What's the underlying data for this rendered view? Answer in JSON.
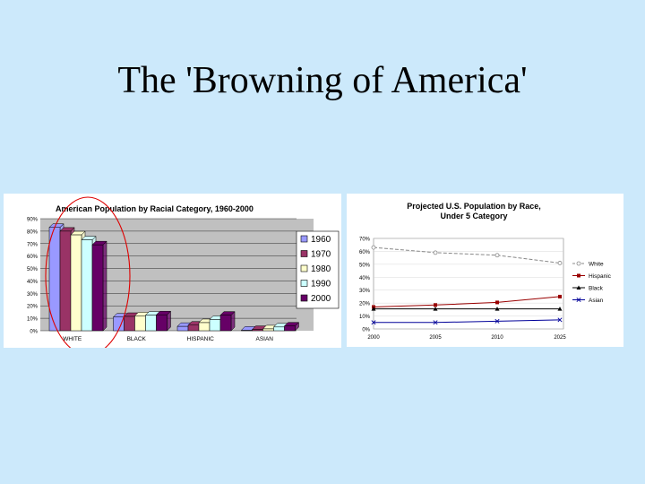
{
  "slide": {
    "title": "The 'Browning of America'"
  },
  "chart_data": [
    {
      "type": "bar",
      "title": "American Population by Racial Category, 1960-2000",
      "categories": [
        "WHITE",
        "BLACK",
        "HISPANIC",
        "ASIAN"
      ],
      "series": [
        {
          "name": "1960",
          "values": [
            83,
            11,
            3.5,
            0.5
          ]
        },
        {
          "name": "1970",
          "values": [
            80,
            11.5,
            4.5,
            1
          ]
        },
        {
          "name": "1980",
          "values": [
            77,
            12,
            6.5,
            1.5
          ]
        },
        {
          "name": "1990",
          "values": [
            73,
            12.5,
            9,
            3
          ]
        },
        {
          "name": "2000",
          "values": [
            69,
            12.8,
            12.5,
            3.8
          ]
        }
      ],
      "yticks": [
        "0%",
        "10%",
        "20%",
        "30%",
        "40%",
        "50%",
        "60%",
        "70%",
        "80%",
        "90%"
      ],
      "ylim": [
        0,
        90
      ],
      "colors": [
        "#9999ff",
        "#993366",
        "#ffffcc",
        "#ccffff",
        "#660066"
      ],
      "legend": "right",
      "annotation": {
        "shape": "ellipse",
        "color": "#dd0000",
        "target": "WHITE"
      }
    },
    {
      "type": "line",
      "title": "Projected U.S. Population by Race, Under 5 Category",
      "x": [
        "2000",
        "2005",
        "2010",
        "2025"
      ],
      "series": [
        {
          "name": "White",
          "values": [
            63,
            59,
            57,
            51
          ],
          "color": "#888888",
          "marker": "circle",
          "dash": true
        },
        {
          "name": "Hispanic",
          "values": [
            17,
            18.5,
            20.5,
            25
          ],
          "color": "#990000",
          "marker": "square"
        },
        {
          "name": "Black",
          "values": [
            15.5,
            15.5,
            15.5,
            15.5
          ],
          "color": "#000000",
          "marker": "triangle"
        },
        {
          "name": "Asian",
          "values": [
            5,
            5,
            6,
            7
          ],
          "color": "#000099",
          "marker": "x"
        }
      ],
      "yticks": [
        "0%",
        "10%",
        "20%",
        "30%",
        "40%",
        "50%",
        "60%",
        "70%"
      ],
      "ylim": [
        0,
        70
      ],
      "legend": "right"
    }
  ]
}
